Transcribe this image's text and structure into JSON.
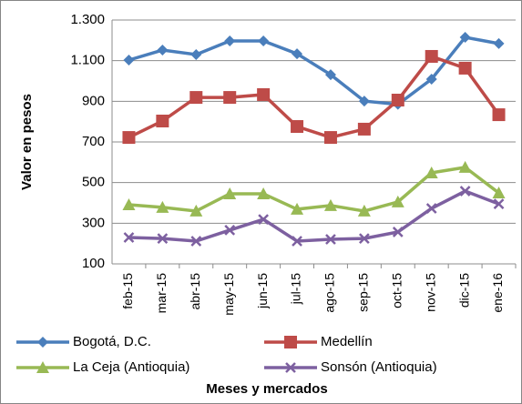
{
  "chart_data": {
    "type": "line",
    "y_label": "Valor en pesos",
    "x_label": "Meses y mercados",
    "categories": [
      "feb-15",
      "mar-15",
      "abr-15",
      "may-15",
      "jun-15",
      "jul-15",
      "ago-15",
      "sep-15",
      "oct-15",
      "nov-15",
      "dic-15",
      "ene-16"
    ],
    "series": [
      {
        "name": "Bogotá, D.C.",
        "color": "#4a7ebb",
        "marker": "diamond",
        "values": [
          1103,
          1152,
          1130,
          1197,
          1197,
          1134,
          1031,
          901,
          885,
          1009,
          1215,
          1184
        ]
      },
      {
        "name": "Medellín",
        "color": "#be4b48",
        "marker": "square",
        "values": [
          722,
          803,
          919,
          919,
          933,
          776,
          722,
          763,
          906,
          1121,
          1063,
          834
        ]
      },
      {
        "name": "La Ceja (Antioquia)",
        "color": "#98b954",
        "marker": "triangle",
        "values": [
          391,
          378,
          360,
          445,
          445,
          369,
          387,
          360,
          405,
          548,
          575,
          449
        ]
      },
      {
        "name": "Sonsón (Antioquia)",
        "color": "#7d60a0",
        "marker": "x",
        "values": [
          230,
          225,
          212,
          266,
          319,
          212,
          221,
          225,
          257,
          373,
          458,
          395
        ]
      }
    ],
    "ylim": [
      100,
      1300
    ],
    "yticks": [
      100,
      300,
      500,
      700,
      900,
      {
        "value": 1100,
        "label": "1.100"
      },
      {
        "value": 1300,
        "label": "1.300"
      }
    ],
    "grid": true,
    "legend_position": "bottom"
  }
}
